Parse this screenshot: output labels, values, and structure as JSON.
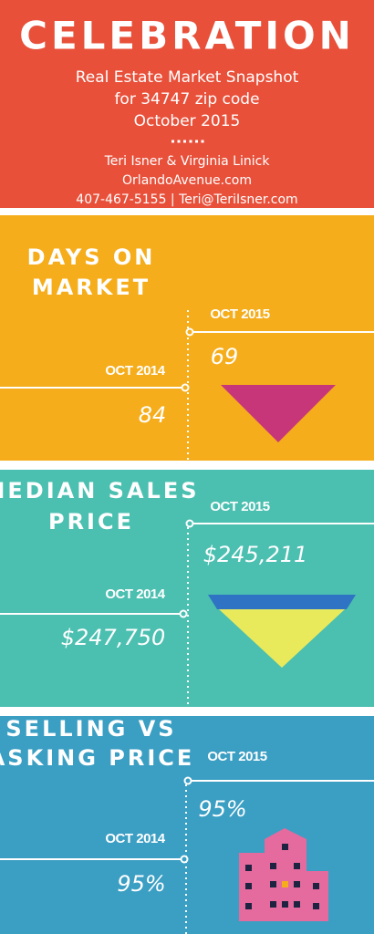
{
  "header": {
    "title": "CELEBRATION",
    "subtitle_lines": [
      "Real Estate Market Snapshot",
      "for 34747 zip code",
      "October 2015"
    ],
    "contact_lines": [
      "Teri Isner & Virginia Linick",
      "OrlandoAvenue.com",
      "407-467-5155 | Teri@TeriIsner.com"
    ]
  },
  "sections": [
    {
      "title_lines": [
        "DAYS ON",
        "MARKET"
      ],
      "current": {
        "label": "OCT 2015",
        "value": "69"
      },
      "previous": {
        "label": "OCT 2014",
        "value": "84"
      }
    },
    {
      "title_lines": [
        "MEDIAN SALES",
        "PRICE"
      ],
      "current": {
        "label": "OCT 2015",
        "value": "$245,211"
      },
      "previous": {
        "label": "OCT 2014",
        "value": "$247,750"
      }
    },
    {
      "title_lines": [
        "SELLING VS",
        "ASKING PRICE"
      ],
      "current": {
        "label": "OCT 2015",
        "value": "95%"
      },
      "previous": {
        "label": "OCT 2014",
        "value": "95%"
      }
    }
  ]
}
